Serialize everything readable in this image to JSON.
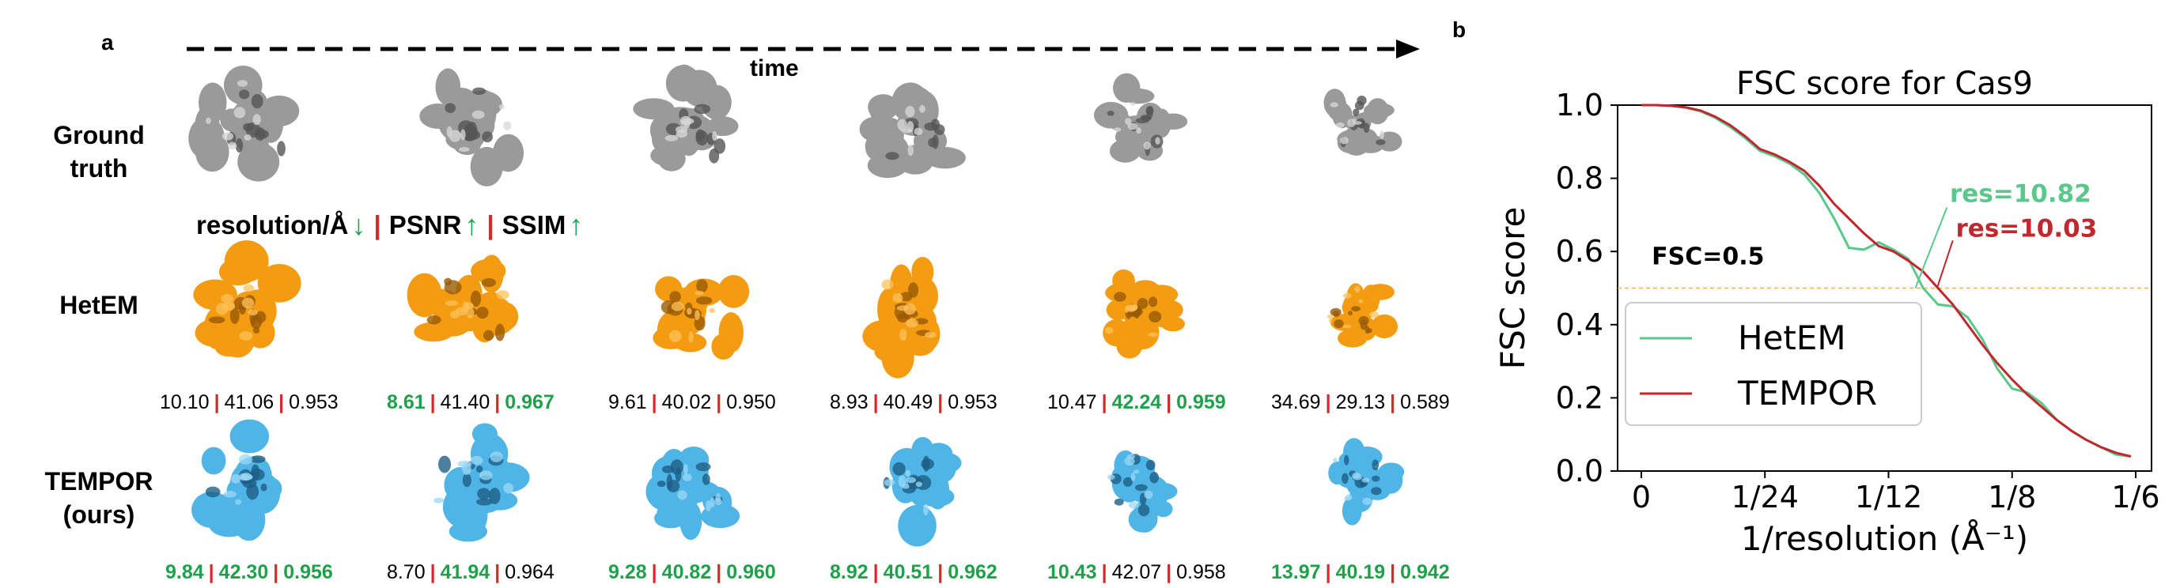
{
  "panel_a": {
    "label": "a",
    "time_label": "time",
    "rows": {
      "ground_truth": [
        "Ground",
        "truth"
      ],
      "hetem": [
        "HetEM"
      ],
      "tempor": [
        "TEMPOR",
        "(ours)"
      ]
    },
    "metric_header": {
      "resolution": "resolution/Å",
      "psnr": "PSNR",
      "ssim": "SSIM",
      "resolution_dir": "↓",
      "psnr_dir": "↑",
      "ssim_dir": "↑"
    },
    "hetem_metrics": [
      {
        "res": "10.10",
        "psnr": "41.06",
        "ssim": "0.953",
        "res_best": false,
        "psnr_best": false,
        "ssim_best": false
      },
      {
        "res": "8.61",
        "psnr": "41.40",
        "ssim": "0.967",
        "res_best": true,
        "psnr_best": false,
        "ssim_best": true
      },
      {
        "res": "9.61",
        "psnr": "40.02",
        "ssim": "0.950",
        "res_best": false,
        "psnr_best": false,
        "ssim_best": false
      },
      {
        "res": "8.93",
        "psnr": "40.49",
        "ssim": "0.953",
        "res_best": false,
        "psnr_best": false,
        "ssim_best": false
      },
      {
        "res": "10.47",
        "psnr": "42.24",
        "ssim": "0.959",
        "res_best": false,
        "psnr_best": true,
        "ssim_best": true
      },
      {
        "res": "34.69",
        "psnr": "29.13",
        "ssim": "0.589",
        "res_best": false,
        "psnr_best": false,
        "ssim_best": false
      }
    ],
    "tempor_metrics": [
      {
        "res": "9.84",
        "psnr": "42.30",
        "ssim": "0.956",
        "res_best": true,
        "psnr_best": true,
        "ssim_best": true
      },
      {
        "res": "8.70",
        "psnr": "41.94",
        "ssim": "0.964",
        "res_best": false,
        "psnr_best": true,
        "ssim_best": false
      },
      {
        "res": "9.28",
        "psnr": "40.82",
        "ssim": "0.960",
        "res_best": true,
        "psnr_best": true,
        "ssim_best": true
      },
      {
        "res": "8.92",
        "psnr": "40.51",
        "ssim": "0.962",
        "res_best": true,
        "psnr_best": true,
        "ssim_best": true
      },
      {
        "res": "10.43",
        "psnr": "42.07",
        "ssim": "0.958",
        "res_best": true,
        "psnr_best": false,
        "ssim_best": false
      },
      {
        "res": "13.97",
        "psnr": "40.19",
        "ssim": "0.942",
        "res_best": true,
        "psnr_best": true,
        "ssim_best": true
      }
    ],
    "colors": {
      "ground_truth": "#9a9a9a",
      "hetem": "#f39c12",
      "tempor": "#4fb4e6",
      "separator": "#d42a2a",
      "best": "#1fa14b"
    }
  },
  "panel_b": {
    "label": "b",
    "chart_data": {
      "type": "line",
      "title": "FSC score for Cas9",
      "xlabel": "1/resolution (Å⁻¹)",
      "ylabel": "FSC score",
      "xlim": [
        -0.008,
        0.172
      ],
      "ylim": [
        0.0,
        1.0
      ],
      "xticks": [
        0,
        0.041667,
        0.083333,
        0.125,
        0.166667
      ],
      "xtick_labels": [
        "0",
        "1/24",
        "1/12",
        "1/8",
        "1/6"
      ],
      "yticks": [
        0.0,
        0.2,
        0.4,
        0.6,
        0.8,
        1.0
      ],
      "ytick_labels": [
        "0.0",
        "0.2",
        "0.4",
        "0.6",
        "0.8",
        "1.0"
      ],
      "threshold": {
        "y": 0.5,
        "label": "FSC=0.5",
        "color": "#f5b041"
      },
      "legend_position": "lower-left",
      "series": [
        {
          "name": "HetEM",
          "color": "#58c98b",
          "x": [
            0,
            0.005,
            0.01,
            0.015,
            0.02,
            0.025,
            0.03,
            0.035,
            0.04,
            0.045,
            0.05,
            0.055,
            0.06,
            0.065,
            0.07,
            0.075,
            0.08,
            0.085,
            0.09,
            0.095,
            0.1,
            0.105,
            0.11,
            0.115,
            0.12,
            0.125,
            0.13,
            0.135,
            0.14,
            0.145,
            0.15,
            0.155,
            0.16,
            0.165
          ],
          "y": [
            1.0,
            1.0,
            0.998,
            0.993,
            0.983,
            0.965,
            0.94,
            0.91,
            0.875,
            0.86,
            0.84,
            0.81,
            0.76,
            0.69,
            0.61,
            0.605,
            0.625,
            0.605,
            0.58,
            0.5,
            0.455,
            0.45,
            0.42,
            0.36,
            0.28,
            0.225,
            0.215,
            0.185,
            0.14,
            0.11,
            0.085,
            0.065,
            0.045,
            0.04
          ]
        },
        {
          "name": "TEMPOR",
          "color": "#c0282d",
          "x": [
            0,
            0.005,
            0.01,
            0.015,
            0.02,
            0.025,
            0.03,
            0.035,
            0.04,
            0.045,
            0.05,
            0.055,
            0.06,
            0.065,
            0.07,
            0.075,
            0.08,
            0.085,
            0.09,
            0.095,
            0.1,
            0.105,
            0.11,
            0.115,
            0.12,
            0.125,
            0.13,
            0.135,
            0.14,
            0.145,
            0.15,
            0.155,
            0.16,
            0.165
          ],
          "y": [
            1.0,
            1.0,
            0.998,
            0.994,
            0.985,
            0.968,
            0.945,
            0.915,
            0.88,
            0.865,
            0.845,
            0.82,
            0.78,
            0.73,
            0.69,
            0.65,
            0.615,
            0.6,
            0.575,
            0.545,
            0.5,
            0.455,
            0.4,
            0.345,
            0.295,
            0.25,
            0.21,
            0.175,
            0.14,
            0.11,
            0.085,
            0.065,
            0.05,
            0.04
          ]
        }
      ],
      "annotations": [
        {
          "text": "res=10.82",
          "color": "#58c98b",
          "point_x": 0.0924,
          "point_y": 0.5
        },
        {
          "text": "res=10.03",
          "color": "#c0282d",
          "point_x": 0.0997,
          "point_y": 0.5
        }
      ]
    }
  }
}
